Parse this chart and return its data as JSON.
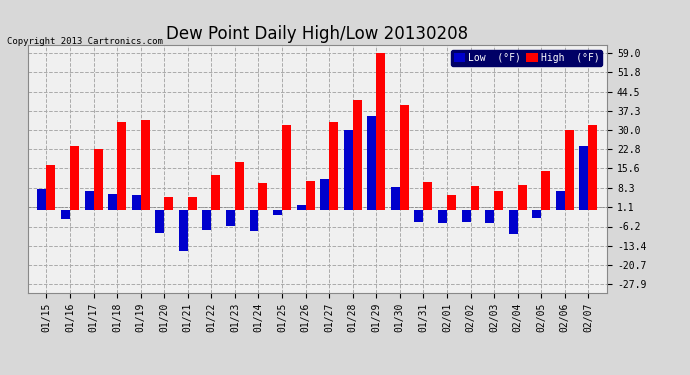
{
  "title": "Dew Point Daily High/Low 20130208",
  "copyright": "Copyright 2013 Cartronics.com",
  "dates": [
    "01/15",
    "01/16",
    "01/17",
    "01/18",
    "01/19",
    "01/20",
    "01/21",
    "01/22",
    "01/23",
    "01/24",
    "01/25",
    "01/26",
    "01/27",
    "01/28",
    "01/29",
    "01/30",
    "01/31",
    "02/01",
    "02/02",
    "02/03",
    "02/04",
    "02/05",
    "02/06",
    "02/07"
  ],
  "high_values": [
    17.0,
    24.0,
    23.0,
    33.0,
    34.0,
    5.0,
    5.0,
    13.0,
    18.0,
    10.0,
    32.0,
    11.0,
    33.0,
    41.5,
    59.0,
    39.5,
    10.5,
    5.5,
    9.0,
    7.0,
    9.5,
    14.5,
    30.0,
    32.0
  ],
  "low_values": [
    8.0,
    -3.5,
    7.0,
    6.0,
    5.5,
    -8.5,
    -15.5,
    -7.5,
    -6.0,
    -8.0,
    -2.0,
    2.0,
    11.5,
    30.0,
    35.5,
    8.5,
    -4.5,
    -5.0,
    -4.5,
    -5.0,
    -9.0,
    -3.0,
    7.0,
    24.0
  ],
  "high_color": "#ff0000",
  "low_color": "#0000cc",
  "bg_color": "#d8d8d8",
  "plot_bg_color": "#f0f0f0",
  "grid_color": "#aaaaaa",
  "ytick_labels": [
    "-27.9",
    "-20.7",
    "-13.4",
    "-6.2",
    "1.1",
    "8.3",
    "15.6",
    "22.8",
    "30.0",
    "37.3",
    "44.5",
    "51.8",
    "59.0"
  ],
  "ytick_values": [
    -27.9,
    -20.7,
    -13.4,
    -6.2,
    1.1,
    8.3,
    15.6,
    22.8,
    30.0,
    37.3,
    44.5,
    51.8,
    59.0
  ],
  "ylim_min": -31.0,
  "ylim_max": 62.0,
  "bar_width": 0.38,
  "title_fontsize": 12,
  "tick_fontsize": 7,
  "legend_low_label": "Low  (°F)",
  "legend_high_label": "High  (°F)"
}
